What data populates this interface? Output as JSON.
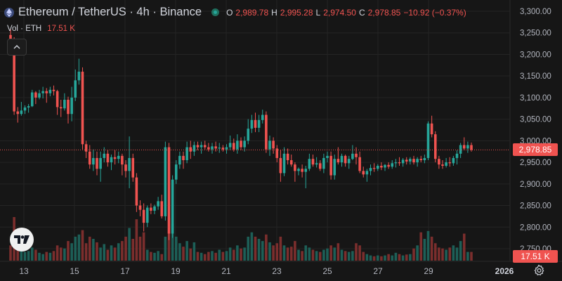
{
  "header": {
    "symbol_title": "Ethereum / TetherUS · 4h · Binance",
    "symbol_icon": "ethereum-icon",
    "ohlc": {
      "open_label": "O",
      "open": "2,989.78",
      "high_label": "H",
      "high": "2,995.28",
      "low_label": "L",
      "low": "2,974.50",
      "close_label": "C",
      "close": "2,978.85",
      "change": "−10.92 (−0.37%)"
    }
  },
  "volume_legend": {
    "label": "Vol · ETH",
    "value": "17.51 K"
  },
  "price_axis": {
    "ticks": [
      "3,300.00",
      "3,250.00",
      "3,200.00",
      "3,150.00",
      "3,100.00",
      "3,050.00",
      "3,000.00",
      "2,950.00",
      "2,900.00",
      "2,850.00",
      "2,800.00",
      "2,750.00"
    ],
    "current_price": "2,978.85",
    "current_volume": "17.51 K"
  },
  "time_axis": {
    "labels": [
      "13",
      "15",
      "17",
      "19",
      "21",
      "23",
      "25",
      "27",
      "29",
      "2026"
    ]
  },
  "colors": {
    "up": "#26a69a",
    "down": "#f05350",
    "background": "#161616",
    "grid": "#242424"
  },
  "chart_data": {
    "type": "candlestick",
    "interval": "4h",
    "ylim": [
      2730,
      3310
    ],
    "candles": [
      [
        3245,
        3258,
        3225,
        3232,
        0
      ],
      [
        3232,
        3240,
        3060,
        3068,
        0
      ],
      [
        3068,
        3078,
        3042,
        3062,
        0
      ],
      [
        3062,
        3090,
        3058,
        3070,
        0
      ],
      [
        3070,
        3082,
        3062,
        3077,
        0
      ],
      [
        3077,
        3085,
        3065,
        3080,
        0
      ],
      [
        3080,
        3118,
        3078,
        3112,
        0
      ],
      [
        3112,
        3115,
        3085,
        3100,
        0
      ],
      [
        3100,
        3118,
        3096,
        3110,
        0
      ],
      [
        3110,
        3125,
        3098,
        3115,
        0
      ],
      [
        3115,
        3122,
        3088,
        3110,
        0
      ],
      [
        3110,
        3125,
        3103,
        3118,
        0
      ],
      [
        3118,
        3128,
        3105,
        3115,
        0
      ],
      [
        3115,
        3118,
        3060,
        3078,
        0
      ],
      [
        3078,
        3095,
        3055,
        3075,
        0
      ],
      [
        3075,
        3110,
        3070,
        3095,
        0
      ],
      [
        3095,
        3102,
        3040,
        3062,
        0
      ],
      [
        3062,
        3125,
        3045,
        3100,
        0
      ],
      [
        3100,
        3165,
        3092,
        3140,
        0
      ],
      [
        3140,
        3190,
        3130,
        3160,
        0
      ],
      [
        3160,
        3170,
        2980,
        2992,
        0
      ],
      [
        2992,
        3000,
        2960,
        2975,
        0
      ],
      [
        2975,
        2990,
        2935,
        2945,
        0
      ],
      [
        2945,
        2980,
        2930,
        2960,
        0
      ],
      [
        2960,
        2975,
        2920,
        2935,
        0
      ],
      [
        2935,
        2975,
        2905,
        2960,
        0
      ],
      [
        2960,
        2985,
        2950,
        2970,
        0
      ],
      [
        2970,
        2978,
        2940,
        2950,
        0
      ],
      [
        2950,
        2968,
        2932,
        2962,
        0
      ],
      [
        2962,
        2978,
        2945,
        2958,
        0
      ],
      [
        2958,
        2975,
        2948,
        2965,
        0
      ],
      [
        2965,
        2970,
        2920,
        2945,
        0
      ],
      [
        2945,
        2955,
        2915,
        2930,
        0
      ],
      [
        2930,
        3010,
        2890,
        2960,
        0
      ],
      [
        2960,
        2970,
        2905,
        2915,
        0
      ],
      [
        2915,
        2925,
        2835,
        2850,
        0
      ],
      [
        2850,
        2862,
        2825,
        2840,
        0
      ],
      [
        2840,
        2855,
        2790,
        2810,
        0
      ],
      [
        2810,
        2850,
        2800,
        2845,
        0
      ],
      [
        2845,
        2855,
        2830,
        2838,
        0
      ],
      [
        2838,
        2852,
        2830,
        2848,
        0
      ],
      [
        2848,
        2870,
        2840,
        2860,
        0
      ],
      [
        2860,
        2875,
        2820,
        2825,
        0
      ],
      [
        2825,
        2998,
        2815,
        2985,
        0
      ],
      [
        2985,
        2995,
        2770,
        2785,
        0
      ],
      [
        2785,
        2920,
        2775,
        2910,
        0
      ],
      [
        2910,
        2955,
        2900,
        2945,
        0
      ],
      [
        2945,
        2975,
        2935,
        2965,
        0
      ],
      [
        2965,
        2975,
        2935,
        2955,
        0
      ],
      [
        2955,
        2998,
        2948,
        2985,
        0
      ],
      [
        2985,
        3000,
        2958,
        2975,
        0
      ],
      [
        2975,
        2998,
        2965,
        2990,
        0
      ],
      [
        2990,
        2998,
        2978,
        2985,
        0
      ],
      [
        2985,
        2998,
        2970,
        2990,
        0
      ],
      [
        2990,
        3000,
        2980,
        2985,
        0
      ],
      [
        2985,
        2995,
        2975,
        2980,
        0
      ],
      [
        2980,
        2995,
        2970,
        2987,
        0
      ],
      [
        2987,
        2998,
        2975,
        2982,
        0
      ],
      [
        2982,
        2995,
        2972,
        2984,
        0
      ],
      [
        2984,
        2990,
        2975,
        2980,
        0
      ],
      [
        2980,
        2992,
        2970,
        2985,
        0
      ],
      [
        2985,
        3012,
        2978,
        2995,
        0
      ],
      [
        2995,
        3005,
        2975,
        2980,
        0
      ],
      [
        2980,
        3015,
        2970,
        3000,
        0
      ],
      [
        3000,
        3008,
        2978,
        2985,
        0
      ],
      [
        2985,
        3010,
        2975,
        3000,
        0
      ],
      [
        3000,
        3050,
        2992,
        3028,
        0
      ],
      [
        3028,
        3060,
        3018,
        3048,
        0
      ],
      [
        3048,
        3065,
        3020,
        3030,
        0
      ],
      [
        3030,
        3060,
        3020,
        3048,
        0
      ],
      [
        3048,
        3072,
        3040,
        3060,
        0
      ],
      [
        3060,
        3068,
        2972,
        2980,
        0
      ],
      [
        2980,
        3012,
        2965,
        3000,
        0
      ],
      [
        3000,
        3008,
        2970,
        2982,
        0
      ],
      [
        2982,
        2990,
        2950,
        2960,
        0
      ],
      [
        2960,
        2978,
        2905,
        2925,
        0
      ],
      [
        2925,
        2985,
        2918,
        2970,
        0
      ],
      [
        2970,
        2982,
        2945,
        2955,
        0
      ],
      [
        2955,
        2968,
        2940,
        2945,
        0
      ],
      [
        2945,
        2950,
        2905,
        2930,
        0
      ],
      [
        2930,
        2938,
        2920,
        2935,
        0
      ],
      [
        2935,
        2945,
        2915,
        2928,
        0
      ],
      [
        2928,
        2942,
        2890,
        2935,
        0
      ],
      [
        2935,
        2970,
        2930,
        2958,
        0
      ],
      [
        2958,
        2968,
        2940,
        2945,
        0
      ],
      [
        2945,
        2962,
        2938,
        2948,
        0
      ],
      [
        2948,
        2955,
        2930,
        2935,
        0
      ],
      [
        2935,
        2970,
        2925,
        2960,
        0
      ],
      [
        2960,
        2975,
        2950,
        2965,
        0
      ],
      [
        2965,
        2975,
        2910,
        2920,
        0
      ],
      [
        2920,
        2968,
        2910,
        2958,
        0
      ],
      [
        2958,
        2985,
        2945,
        2950,
        0
      ],
      [
        2950,
        2970,
        2940,
        2965,
        0
      ],
      [
        2965,
        2968,
        2940,
        2948,
        0
      ],
      [
        2948,
        2965,
        2935,
        2958,
        0
      ],
      [
        2958,
        2990,
        2955,
        2970,
        0
      ],
      [
        2970,
        2985,
        2945,
        2962,
        0
      ],
      [
        2962,
        2975,
        2925,
        2930,
        0
      ],
      [
        2930,
        2940,
        2915,
        2922,
        0
      ],
      [
        2922,
        2935,
        2905,
        2930,
        0
      ],
      [
        2930,
        2945,
        2920,
        2937,
        0
      ],
      [
        2937,
        2948,
        2928,
        2935,
        0
      ],
      [
        2935,
        2946,
        2930,
        2942,
        0
      ],
      [
        2942,
        2950,
        2932,
        2938,
        0
      ],
      [
        2938,
        2946,
        2930,
        2944,
        0
      ],
      [
        2944,
        2950,
        2935,
        2940,
        0
      ],
      [
        2940,
        2955,
        2935,
        2948,
        0
      ],
      [
        2948,
        2958,
        2938,
        2950,
        0
      ],
      [
        2950,
        2962,
        2942,
        2948,
        0
      ],
      [
        2948,
        2960,
        2940,
        2956,
        0
      ],
      [
        2956,
        2962,
        2945,
        2952,
        0
      ],
      [
        2952,
        2962,
        2945,
        2958,
        0
      ],
      [
        2958,
        2965,
        2945,
        2950,
        0
      ],
      [
        2950,
        2962,
        2940,
        2958,
        0
      ],
      [
        2958,
        2965,
        2950,
        2955,
        0
      ],
      [
        2955,
        2968,
        2948,
        2960,
        0
      ],
      [
        2960,
        3045,
        2955,
        3040,
        0
      ],
      [
        3040,
        3058,
        3008,
        3015,
        0
      ],
      [
        3015,
        3022,
        2950,
        2958,
        0
      ],
      [
        2958,
        2965,
        2935,
        2945,
        0
      ],
      [
        2945,
        2955,
        2935,
        2942,
        0
      ],
      [
        2942,
        2960,
        2938,
        2950,
        0
      ],
      [
        2950,
        2962,
        2940,
        2948,
        0
      ],
      [
        2948,
        2965,
        2942,
        2960,
        0
      ],
      [
        2960,
        2978,
        2945,
        2970,
        0
      ],
      [
        2970,
        2995,
        2960,
        2990,
        0
      ],
      [
        2990,
        3008,
        2978,
        2982,
        0
      ],
      [
        2982,
        2998,
        2972,
        2990,
        0
      ],
      [
        2990,
        2996,
        2975,
        2979,
        0
      ]
    ],
    "volume_heights_relative": [
      0.35,
      1.0,
      0.25,
      0.3,
      0.2,
      0.22,
      0.3,
      0.25,
      0.18,
      0.15,
      0.2,
      0.18,
      0.22,
      0.35,
      0.3,
      0.28,
      0.45,
      0.4,
      0.55,
      0.6,
      0.7,
      0.4,
      0.55,
      0.5,
      0.42,
      0.3,
      0.38,
      0.25,
      0.35,
      0.3,
      0.4,
      0.45,
      0.55,
      0.75,
      0.5,
      0.95,
      0.55,
      0.65,
      0.25,
      0.2,
      0.18,
      0.22,
      0.15,
      0.55,
      0.98,
      0.85,
      0.55,
      0.4,
      0.32,
      0.45,
      0.28,
      0.42,
      0.2,
      0.18,
      0.15,
      0.2,
      0.22,
      0.18,
      0.25,
      0.2,
      0.22,
      0.3,
      0.25,
      0.35,
      0.28,
      0.3,
      0.55,
      0.65,
      0.55,
      0.5,
      0.45,
      0.6,
      0.42,
      0.35,
      0.4,
      0.55,
      0.35,
      0.3,
      0.32,
      0.45,
      0.25,
      0.22,
      0.35,
      0.3,
      0.25,
      0.22,
      0.2,
      0.25,
      0.28,
      0.35,
      0.3,
      0.4,
      0.25,
      0.22,
      0.2,
      0.22,
      0.4,
      0.35,
      0.2,
      0.15,
      0.12,
      0.1,
      0.12,
      0.1,
      0.12,
      0.15,
      0.12,
      0.18,
      0.15,
      0.12,
      0.14,
      0.15,
      0.28,
      0.35,
      0.65,
      0.5,
      0.68,
      0.55,
      0.4,
      0.3,
      0.28,
      0.25,
      0.3,
      0.35,
      0.3,
      0.45,
      0.62,
      0.2
    ]
  }
}
